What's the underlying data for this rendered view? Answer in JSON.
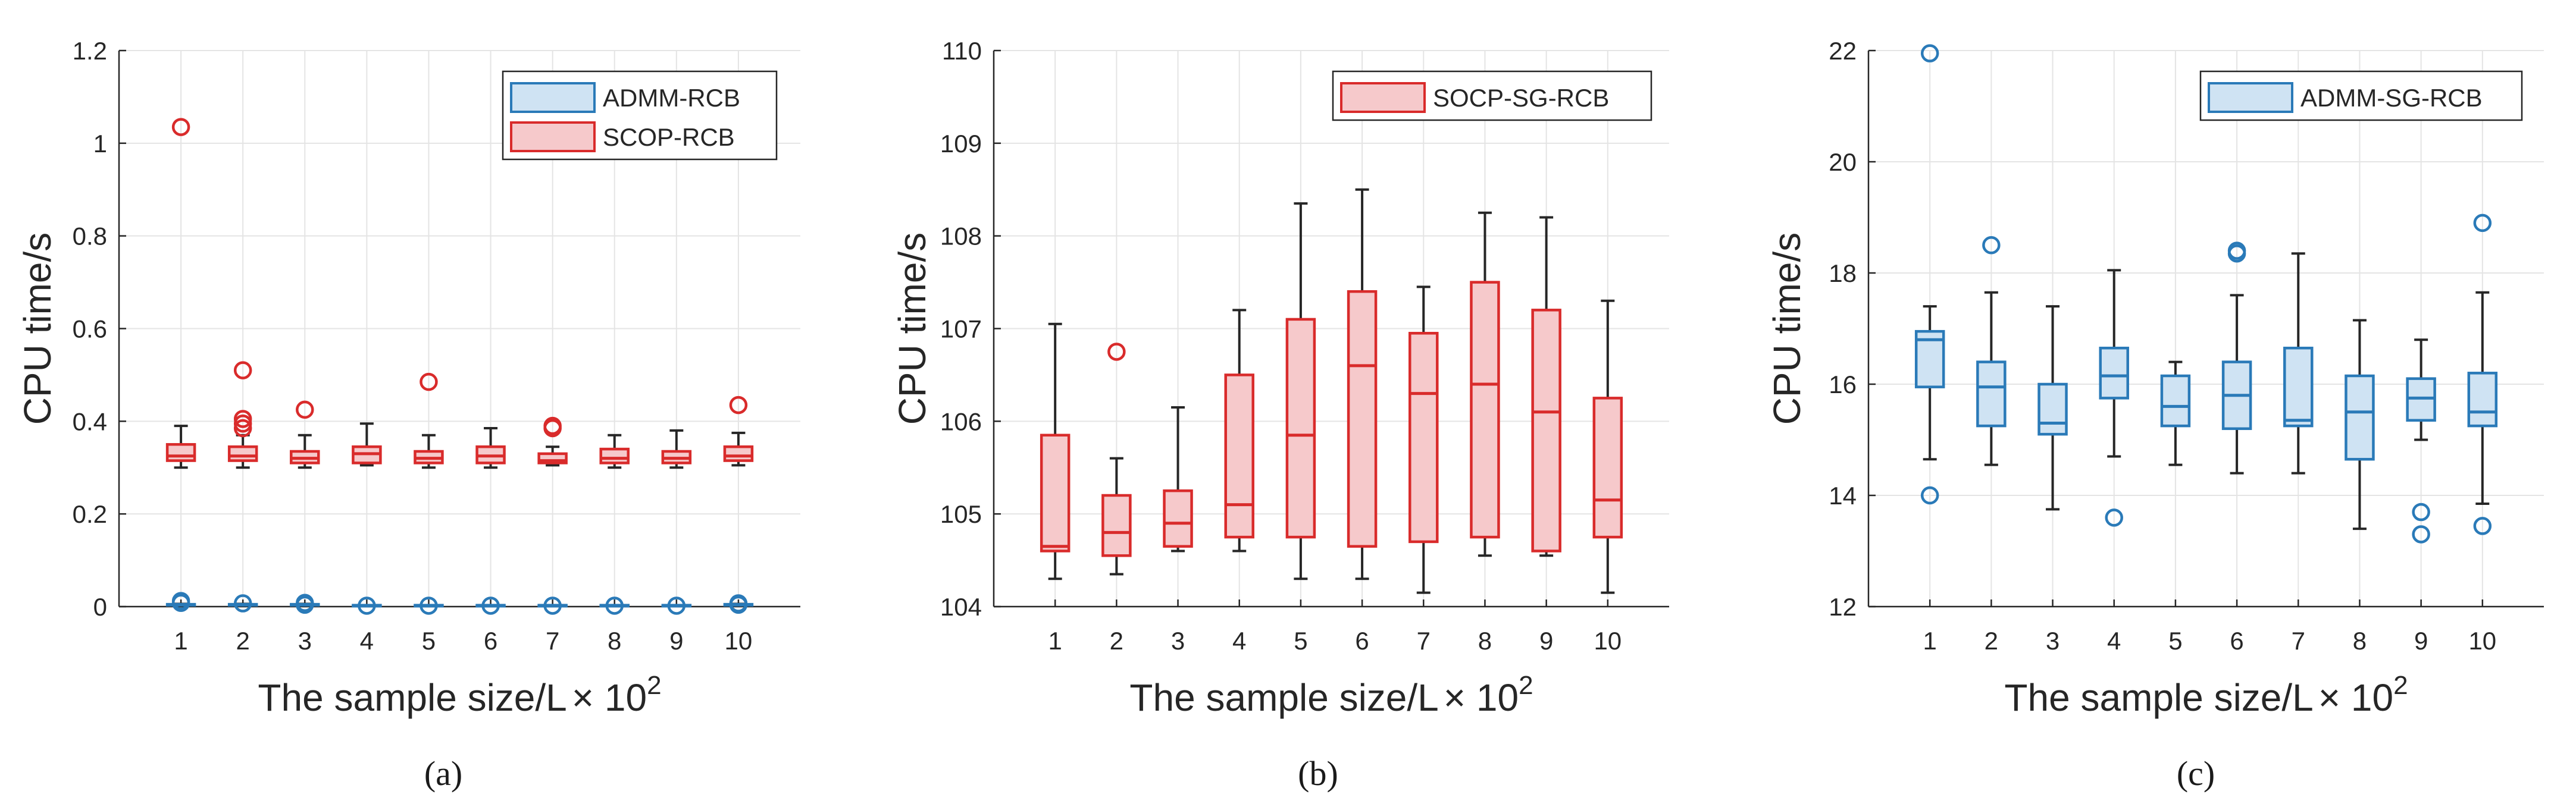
{
  "chart_data": [
    {
      "type": "box",
      "panel": "a",
      "caption": "(a)",
      "xlabel": "The sample size/L",
      "xlabel_suffix": "× 10",
      "xlabel_exponent": "2",
      "ylabel": "CPU time/s",
      "ylim": [
        0,
        1.2
      ],
      "yticks": [
        "0",
        "0.2",
        "0.4",
        "0.6",
        "0.8",
        "1",
        "1.2"
      ],
      "yticks_values": [
        0,
        0.2,
        0.4,
        0.6,
        0.8,
        1.0,
        1.2
      ],
      "categories": [
        "1",
        "2",
        "3",
        "4",
        "5",
        "6",
        "7",
        "8",
        "9",
        "10"
      ],
      "legend_position": "top-right",
      "series": [
        {
          "name": "ADMM-RCB",
          "stroke": "#2a7ab8",
          "fill": "#cfe3f3",
          "boxes": [
            {
              "min": 0.002,
              "q1": 0.003,
              "median": 0.004,
              "q3": 0.005,
              "max": 0.006,
              "outliers": [
                0.008,
                0.012
              ]
            },
            {
              "min": 0.002,
              "q1": 0.003,
              "median": 0.004,
              "q3": 0.005,
              "max": 0.006,
              "outliers": [
                0.007
              ]
            },
            {
              "min": 0.002,
              "q1": 0.003,
              "median": 0.004,
              "q3": 0.005,
              "max": 0.006,
              "outliers": [
                0.004,
                0.008
              ]
            },
            {
              "min": 0.001,
              "q1": 0.002,
              "median": 0.002,
              "q3": 0.003,
              "max": 0.003,
              "outliers": [
                0.002
              ]
            },
            {
              "min": 0.001,
              "q1": 0.002,
              "median": 0.002,
              "q3": 0.003,
              "max": 0.003,
              "outliers": [
                0.002
              ]
            },
            {
              "min": 0.001,
              "q1": 0.002,
              "median": 0.002,
              "q3": 0.003,
              "max": 0.003,
              "outliers": [
                0.002
              ]
            },
            {
              "min": 0.001,
              "q1": 0.002,
              "median": 0.002,
              "q3": 0.003,
              "max": 0.003,
              "outliers": [
                0.002
              ]
            },
            {
              "min": 0.001,
              "q1": 0.002,
              "median": 0.002,
              "q3": 0.003,
              "max": 0.003,
              "outliers": [
                0.002
              ]
            },
            {
              "min": 0.001,
              "q1": 0.002,
              "median": 0.002,
              "q3": 0.003,
              "max": 0.003,
              "outliers": [
                0.002
              ]
            },
            {
              "min": 0.002,
              "q1": 0.003,
              "median": 0.004,
              "q3": 0.005,
              "max": 0.006,
              "outliers": [
                0.004,
                0.007
              ]
            }
          ]
        },
        {
          "name": "SCOP-RCB",
          "stroke": "#d92b2b",
          "fill": "#f6c9cb",
          "boxes": [
            {
              "min": 0.3,
              "q1": 0.315,
              "median": 0.325,
              "q3": 0.35,
              "max": 0.39,
              "outliers": [
                1.035
              ]
            },
            {
              "min": 0.3,
              "q1": 0.315,
              "median": 0.325,
              "q3": 0.345,
              "max": 0.37,
              "outliers": [
                0.385,
                0.395,
                0.405,
                0.51
              ]
            },
            {
              "min": 0.3,
              "q1": 0.31,
              "median": 0.32,
              "q3": 0.335,
              "max": 0.37,
              "outliers": [
                0.425
              ]
            },
            {
              "min": 0.305,
              "q1": 0.31,
              "median": 0.33,
              "q3": 0.345,
              "max": 0.395,
              "outliers": []
            },
            {
              "min": 0.3,
              "q1": 0.31,
              "median": 0.32,
              "q3": 0.335,
              "max": 0.37,
              "outliers": [
                0.485
              ]
            },
            {
              "min": 0.3,
              "q1": 0.31,
              "median": 0.325,
              "q3": 0.345,
              "max": 0.385,
              "outliers": []
            },
            {
              "min": 0.305,
              "q1": 0.31,
              "median": 0.315,
              "q3": 0.33,
              "max": 0.345,
              "outliers": [
                0.385,
                0.39
              ]
            },
            {
              "min": 0.3,
              "q1": 0.31,
              "median": 0.32,
              "q3": 0.34,
              "max": 0.37,
              "outliers": []
            },
            {
              "min": 0.3,
              "q1": 0.31,
              "median": 0.32,
              "q3": 0.335,
              "max": 0.38,
              "outliers": []
            },
            {
              "min": 0.305,
              "q1": 0.315,
              "median": 0.325,
              "q3": 0.345,
              "max": 0.375,
              "outliers": [
                0.435
              ]
            }
          ]
        }
      ]
    },
    {
      "type": "box",
      "panel": "b",
      "caption": "(b)",
      "xlabel": "The sample size/L",
      "xlabel_suffix": "× 10",
      "xlabel_exponent": "2",
      "ylabel": "CPU time/s",
      "ylim": [
        104,
        110
      ],
      "yticks": [
        "104",
        "105",
        "106",
        "107",
        "108",
        "109",
        "110"
      ],
      "yticks_values": [
        104,
        105,
        106,
        107,
        108,
        109,
        110
      ],
      "categories": [
        "1",
        "2",
        "3",
        "4",
        "5",
        "6",
        "7",
        "8",
        "9",
        "10"
      ],
      "legend_position": "top-right",
      "series": [
        {
          "name": "SOCP-SG-RCB",
          "stroke": "#d92b2b",
          "fill": "#f6c9cb",
          "boxes": [
            {
              "min": 104.3,
              "q1": 104.6,
              "median": 104.65,
              "q3": 105.85,
              "max": 107.05,
              "outliers": []
            },
            {
              "min": 104.35,
              "q1": 104.55,
              "median": 104.8,
              "q3": 105.2,
              "max": 105.6,
              "outliers": [
                106.75
              ]
            },
            {
              "min": 104.6,
              "q1": 104.65,
              "median": 104.9,
              "q3": 105.25,
              "max": 106.15,
              "outliers": []
            },
            {
              "min": 104.6,
              "q1": 104.75,
              "median": 105.1,
              "q3": 106.5,
              "max": 107.2,
              "outliers": []
            },
            {
              "min": 104.3,
              "q1": 104.75,
              "median": 105.85,
              "q3": 107.1,
              "max": 108.35,
              "outliers": []
            },
            {
              "min": 104.3,
              "q1": 104.65,
              "median": 106.6,
              "q3": 107.4,
              "max": 108.5,
              "outliers": []
            },
            {
              "min": 104.15,
              "q1": 104.7,
              "median": 106.3,
              "q3": 106.95,
              "max": 107.45,
              "outliers": []
            },
            {
              "min": 104.55,
              "q1": 104.75,
              "median": 106.4,
              "q3": 107.5,
              "max": 108.25,
              "outliers": []
            },
            {
              "min": 104.55,
              "q1": 104.6,
              "median": 106.1,
              "q3": 107.2,
              "max": 108.2,
              "outliers": []
            },
            {
              "min": 104.15,
              "q1": 104.75,
              "median": 105.15,
              "q3": 106.25,
              "max": 107.3,
              "outliers": []
            }
          ]
        }
      ]
    },
    {
      "type": "box",
      "panel": "c",
      "caption": "(c)",
      "xlabel": "The sample size/L",
      "xlabel_suffix": "× 10",
      "xlabel_exponent": "2",
      "ylabel": "CPU time/s",
      "ylim": [
        12,
        22
      ],
      "yticks": [
        "12",
        "14",
        "16",
        "18",
        "20",
        "22"
      ],
      "yticks_values": [
        12,
        14,
        16,
        18,
        20,
        22
      ],
      "categories": [
        "1",
        "2",
        "3",
        "4",
        "5",
        "6",
        "7",
        "8",
        "9",
        "10"
      ],
      "legend_position": "top-right",
      "series": [
        {
          "name": "ADMM-SG-RCB",
          "stroke": "#2a7ab8",
          "fill": "#cfe3f3",
          "boxes": [
            {
              "min": 14.65,
              "q1": 15.95,
              "median": 16.8,
              "q3": 16.95,
              "max": 17.4,
              "outliers": [
                21.95,
                14.0
              ]
            },
            {
              "min": 14.55,
              "q1": 15.25,
              "median": 15.95,
              "q3": 16.4,
              "max": 17.65,
              "outliers": [
                18.5
              ]
            },
            {
              "min": 13.75,
              "q1": 15.1,
              "median": 15.3,
              "q3": 16.0,
              "max": 17.4,
              "outliers": []
            },
            {
              "min": 14.7,
              "q1": 15.75,
              "median": 16.15,
              "q3": 16.65,
              "max": 18.05,
              "outliers": [
                13.6
              ]
            },
            {
              "min": 14.55,
              "q1": 15.25,
              "median": 15.6,
              "q3": 16.15,
              "max": 16.4,
              "outliers": []
            },
            {
              "min": 14.4,
              "q1": 15.2,
              "median": 15.8,
              "q3": 16.4,
              "max": 17.6,
              "outliers": [
                18.35,
                18.4
              ]
            },
            {
              "min": 14.4,
              "q1": 15.25,
              "median": 15.35,
              "q3": 16.65,
              "max": 18.35,
              "outliers": []
            },
            {
              "min": 13.4,
              "q1": 14.65,
              "median": 15.5,
              "q3": 16.15,
              "max": 17.15,
              "outliers": []
            },
            {
              "min": 15.0,
              "q1": 15.35,
              "median": 15.75,
              "q3": 16.1,
              "max": 16.8,
              "outliers": [
                13.7,
                13.3
              ]
            },
            {
              "min": 13.85,
              "q1": 15.25,
              "median": 15.5,
              "q3": 16.2,
              "max": 17.65,
              "outliers": [
                18.9,
                13.45
              ]
            }
          ]
        }
      ]
    }
  ]
}
